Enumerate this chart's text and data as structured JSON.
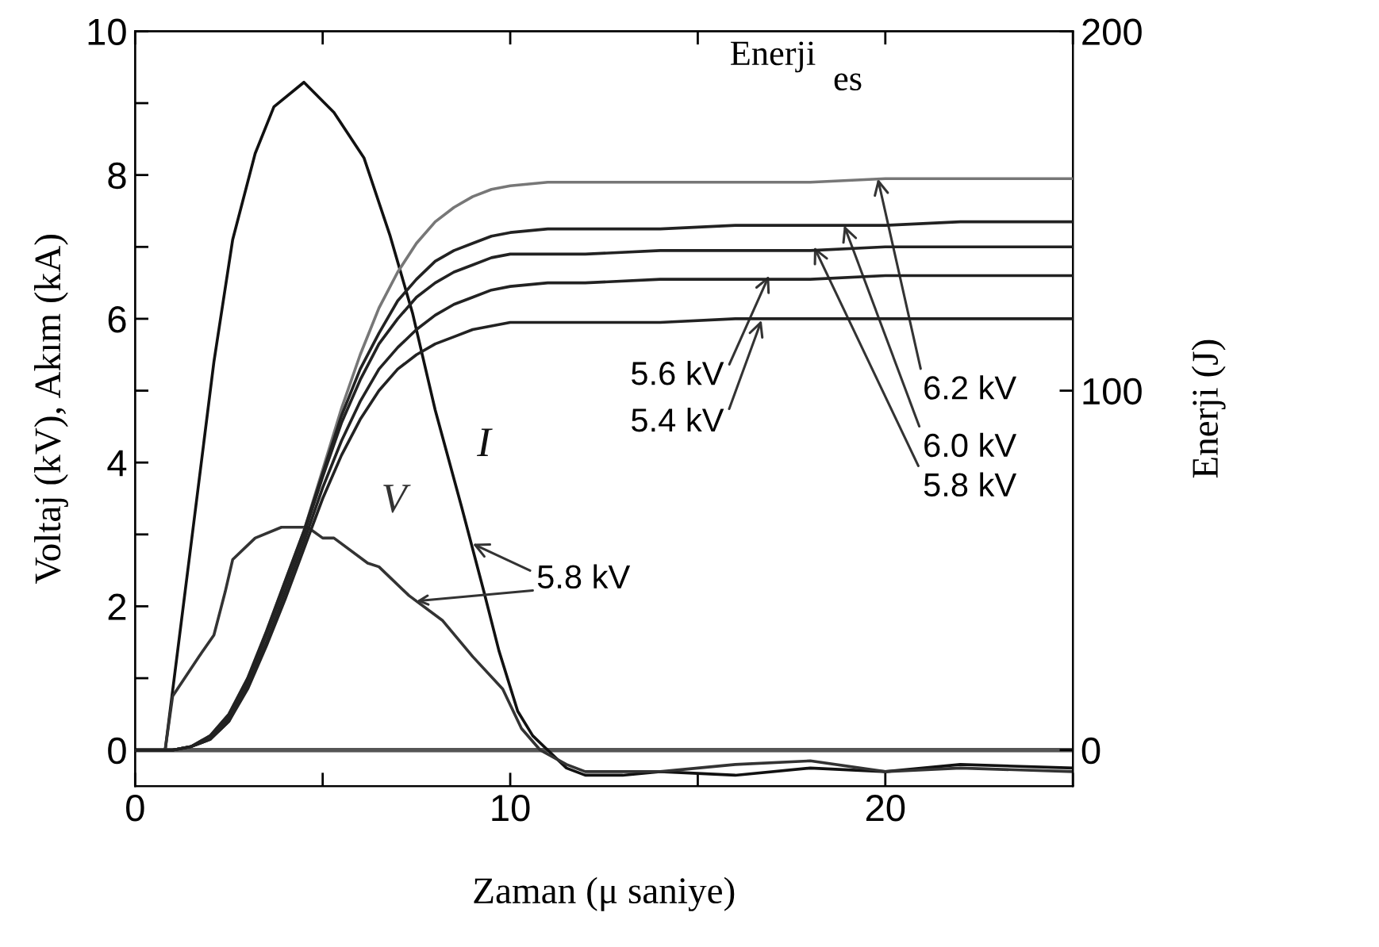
{
  "chart_data": {
    "type": "line",
    "xlabel": "Zaman (μ saniye)",
    "ylabel": "Voltaj (kV), Akım (kA)",
    "y2label": "Enerji (J)",
    "xlim": [
      0,
      25
    ],
    "xticks": [
      0,
      {
        "value": 5,
        "label": null
      },
      10,
      {
        "value": 15,
        "label": null
      },
      20,
      {
        "value": 25,
        "label": null
      }
    ],
    "ylim": [
      -0.5,
      10
    ],
    "yticks": [
      0,
      {
        "value": 1,
        "label": null
      },
      2,
      {
        "value": 3,
        "label": null
      },
      4,
      {
        "value": 5,
        "label": null
      },
      6,
      {
        "value": 7,
        "label": null
      },
      8,
      {
        "value": 9,
        "label": null
      },
      10
    ],
    "y2lim": [
      -10,
      200
    ],
    "y2ticks": [
      0,
      100,
      200
    ],
    "grid": false,
    "legend": false,
    "marker": "none",
    "line_style": "solid",
    "ref_lines": [
      {
        "axis": "y",
        "value": 0,
        "color": "#555555"
      }
    ],
    "series": [
      {
        "name": "I",
        "color": "#111111",
        "x": [
          0,
          0.8,
          1.5,
          2.1,
          2.6,
          3.2,
          3.7,
          4.5,
          5.3,
          6.1,
          6.8,
          7.4,
          8.0,
          8.7,
          9.3,
          9.7,
          10.2,
          10.6,
          11.0,
          11.5,
          12,
          13,
          14,
          16,
          18,
          20,
          22,
          25
        ],
        "values": [
          0,
          0,
          2.9,
          5.4,
          7.1,
          8.3,
          8.95,
          9.29,
          8.87,
          8.24,
          7.15,
          6.07,
          4.73,
          3.39,
          2.2,
          1.38,
          0.54,
          0.2,
          0,
          -0.25,
          -0.35,
          -0.35,
          -0.3,
          -0.35,
          -0.25,
          -0.3,
          -0.2,
          -0.25
        ]
      },
      {
        "name": "V",
        "color": "#333333",
        "x": [
          0,
          0.8,
          1.0,
          1.7,
          2.1,
          2.4,
          2.6,
          3.2,
          3.9,
          4.6,
          5.0,
          5.3,
          6.2,
          6.5,
          7.3,
          8.2,
          9.0,
          9.8,
          10.3,
          10.8,
          11.5,
          12,
          14,
          16,
          18,
          20,
          22,
          25
        ],
        "values": [
          0,
          0,
          0.75,
          1.3,
          1.6,
          2.2,
          2.65,
          2.95,
          3.1,
          3.1,
          2.95,
          2.95,
          2.6,
          2.55,
          2.15,
          1.8,
          1.3,
          0.85,
          0.3,
          0,
          -0.2,
          -0.3,
          -0.3,
          -0.2,
          -0.15,
          -0.3,
          -0.25,
          -0.3
        ]
      },
      {
        "color": "#777777",
        "axis": "y2",
        "x": [
          0,
          1.0,
          1.5,
          2.0,
          2.5,
          3.0,
          3.5,
          4.0,
          4.5,
          5.0,
          5.5,
          6.0,
          6.5,
          7.0,
          7.5,
          8.0,
          8.5,
          9.0,
          9.5,
          10,
          11,
          12,
          14,
          16,
          18,
          20,
          22,
          25
        ],
        "values": [
          0,
          0,
          1,
          4,
          10,
          20,
          33,
          47,
          61,
          78,
          95,
          110,
          123,
          133,
          141,
          147,
          151,
          154,
          156,
          157,
          158,
          158,
          158,
          158,
          158,
          159,
          159,
          159
        ]
      },
      {
        "color": "#222222",
        "axis": "y2",
        "x": [
          0,
          1.0,
          1.5,
          2.0,
          2.5,
          3.0,
          3.5,
          4.0,
          4.5,
          5.0,
          5.5,
          6.0,
          6.5,
          7.0,
          7.5,
          8.0,
          8.5,
          9.0,
          9.5,
          10,
          11,
          12,
          14,
          16,
          18,
          20,
          22,
          25
        ],
        "values": [
          0,
          0,
          1,
          4,
          10,
          20,
          33,
          47,
          61,
          77,
          93,
          106,
          116,
          125,
          131,
          136,
          139,
          141,
          143,
          144,
          145,
          145,
          145,
          146,
          146,
          146,
          147,
          147
        ]
      },
      {
        "color": "#222222",
        "axis": "y2",
        "x": [
          0,
          1.0,
          1.5,
          2.0,
          2.5,
          3.0,
          3.5,
          4.0,
          4.5,
          5.0,
          5.5,
          6.0,
          6.5,
          7.0,
          7.5,
          8.0,
          8.5,
          9.0,
          9.5,
          10,
          11,
          12,
          14,
          16,
          18,
          20,
          22,
          25
        ],
        "values": [
          0,
          0,
          1,
          3,
          9,
          19,
          32,
          46,
          60,
          76,
          91,
          103,
          113,
          120,
          126,
          130,
          133,
          135,
          137,
          138,
          138,
          138,
          139,
          139,
          139,
          140,
          140,
          140
        ]
      },
      {
        "color": "#222222",
        "axis": "y2",
        "x": [
          0,
          1.0,
          1.5,
          2.0,
          2.5,
          3.0,
          3.5,
          4.0,
          4.5,
          5.0,
          5.5,
          6.0,
          6.5,
          7.0,
          7.5,
          8.0,
          8.5,
          9.0,
          9.5,
          10,
          11,
          12,
          14,
          16,
          18,
          20,
          22,
          25
        ],
        "values": [
          0,
          0,
          1,
          3,
          8,
          18,
          30,
          44,
          58,
          73,
          86,
          97,
          106,
          112,
          117,
          121,
          124,
          126,
          128,
          129,
          130,
          130,
          131,
          131,
          131,
          132,
          132,
          132
        ]
      },
      {
        "color": "#222222",
        "axis": "y2",
        "x": [
          0,
          1.0,
          1.5,
          2.0,
          2.5,
          3.0,
          3.5,
          4.0,
          4.5,
          5.0,
          5.5,
          6.0,
          6.5,
          7.0,
          7.5,
          8.0,
          8.5,
          9.0,
          9.5,
          10,
          11,
          12,
          14,
          16,
          18,
          20,
          22,
          25
        ],
        "values": [
          0,
          0,
          1,
          3,
          8,
          17,
          29,
          42,
          56,
          70,
          82,
          92,
          100,
          106,
          110,
          113,
          115,
          117,
          118,
          119,
          119,
          119,
          119,
          120,
          120,
          120,
          120,
          120
        ]
      }
    ],
    "annotations": [
      "Enerji",
      "es",
      {
        "text": "5.8 kV",
        "x": 9.0,
        "y": 2.87
      },
      {
        "text": "5.6 kV",
        "x": 16.9,
        "y": 6.6
      },
      {
        "text": "5.4 kV",
        "x": 16.7,
        "y": 5.98
      },
      {
        "text": "6.2 kV",
        "x": 19.8,
        "y": 7.95
      },
      {
        "text": "6.0 kV",
        "x": 18.9,
        "y": 7.3
      },
      {
        "text": "5.8 kV",
        "x": 18.1,
        "y": 7.0
      }
    ]
  }
}
